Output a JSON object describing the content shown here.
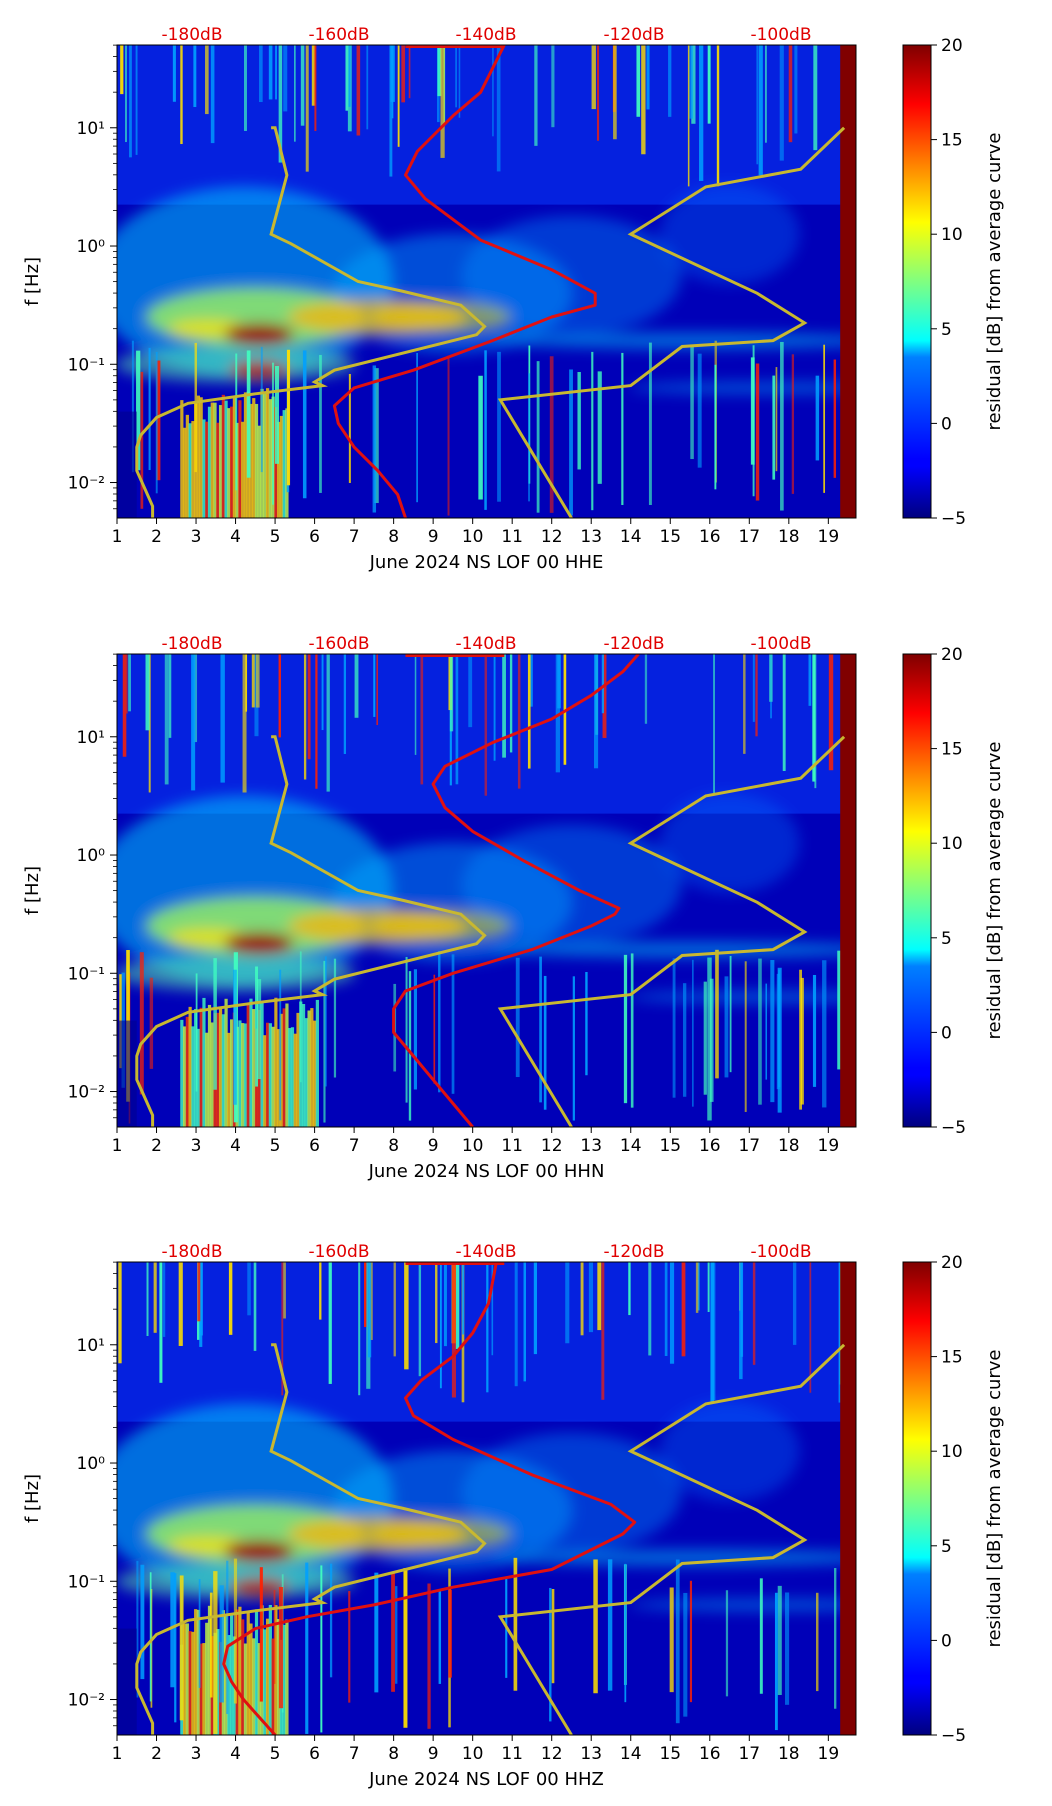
{
  "chart_data": [
    {
      "type": "heatmap",
      "xlabel": "June 2024 NS LOF 00 HHE",
      "ylabel": "f [Hz]",
      "x_ticks": [
        1,
        2,
        3,
        4,
        5,
        6,
        7,
        8,
        9,
        10,
        11,
        12,
        13,
        14,
        15,
        16,
        17,
        18,
        19
      ],
      "y_ticks": [
        "10⁻²",
        "10⁻¹",
        "10⁰",
        "10¹"
      ],
      "top_axis_labels": [
        "-180dB",
        "-160dB",
        "-140dB",
        "-120dB",
        "-100dB"
      ],
      "colorbar": {
        "label": "residual [dB] from average curve",
        "ticks": [
          -5,
          0,
          5,
          10,
          15,
          20
        ],
        "range": [
          -5,
          20
        ]
      },
      "xlim": [
        1,
        19.7
      ],
      "ylim_log10": [
        -2.3,
        1.7
      ],
      "bright_days": [
        2.6,
        5.3
      ],
      "red_curve": {
        "name": "",
        "x": [
          8.3,
          8.1,
          7.6,
          7.0,
          6.6,
          6.5,
          7.0,
          8.5,
          10.5,
          12.0,
          13.1,
          13.1,
          12.0,
          10.2,
          8.8,
          8.3,
          8.6,
          9.5,
          10.2,
          10.5,
          10.8
        ],
        "log_f": [
          -2.3,
          -2.1,
          -1.9,
          -1.7,
          -1.5,
          -1.35,
          -1.2,
          -1.05,
          -0.8,
          -0.6,
          -0.5,
          -0.4,
          -0.2,
          0.05,
          0.4,
          0.6,
          0.8,
          1.1,
          1.3,
          1.5,
          1.7
        ]
      },
      "yellow_curves": [
        {
          "x": [
            1.9,
            1.9,
            1.7,
            1.5,
            1.5,
            1.6,
            2.0,
            2.8,
            4.5,
            6.2,
            6.0,
            6.5,
            10.1,
            10.3,
            9.7,
            8.2,
            7.1,
            5.4,
            4.9,
            5.3,
            5.0,
            4.9
          ],
          "log_f": [
            -2.3,
            -2.2,
            -2.05,
            -1.9,
            -1.7,
            -1.6,
            -1.45,
            -1.33,
            -1.25,
            -1.18,
            -1.15,
            -1.05,
            -0.75,
            -0.68,
            -0.5,
            -0.38,
            -0.3,
            0.02,
            0.1,
            0.6,
            1.0,
            1.0
          ]
        },
        {
          "x": [
            12.5,
            10.7,
            14.0,
            15.3,
            17.6,
            18.4,
            17.2,
            14.0,
            15.9,
            18.3,
            19.4
          ],
          "log_f": [
            -2.3,
            -1.3,
            -1.18,
            -0.85,
            -0.8,
            -0.65,
            -0.4,
            0.1,
            0.5,
            0.65,
            1.0
          ]
        }
      ]
    },
    {
      "type": "heatmap",
      "xlabel": "June 2024 NS LOF 00 HHN",
      "ylabel": "f [Hz]",
      "x_ticks": [
        1,
        2,
        3,
        4,
        5,
        6,
        7,
        8,
        9,
        10,
        11,
        12,
        13,
        14,
        15,
        16,
        17,
        18,
        19
      ],
      "y_ticks": [
        "10⁻²",
        "10⁻¹",
        "10⁰",
        "10¹"
      ],
      "top_axis_labels": [
        "-180dB",
        "-160dB",
        "-140dB",
        "-120dB",
        "-100dB"
      ],
      "colorbar": {
        "label": "residual [dB] from average curve",
        "ticks": [
          -5,
          0,
          5,
          10,
          15,
          20
        ],
        "range": [
          -5,
          20
        ]
      },
      "xlim": [
        1,
        19.7
      ],
      "ylim_log10": [
        -2.3,
        1.7
      ],
      "bright_days": [
        2.6,
        6.1
      ],
      "red_curve": {
        "name": "",
        "x": [
          10.0,
          9.5,
          9.0,
          8.5,
          8.0,
          8.0,
          8.3,
          9.5,
          11.5,
          13.0,
          13.6,
          13.7,
          12.7,
          11.3,
          10.0,
          9.3,
          9.0,
          9.3,
          10.5,
          12.0,
          13.0,
          13.8,
          14.2
        ],
        "log_f": [
          -2.3,
          -2.1,
          -1.9,
          -1.7,
          -1.5,
          -1.3,
          -1.15,
          -1.0,
          -0.8,
          -0.6,
          -0.5,
          -0.45,
          -0.3,
          -0.05,
          0.2,
          0.4,
          0.6,
          0.75,
          0.95,
          1.15,
          1.35,
          1.55,
          1.7
        ]
      },
      "yellow_curves": [
        {
          "x": [
            1.9,
            1.9,
            1.7,
            1.5,
            1.5,
            1.6,
            2.0,
            2.8,
            4.5,
            6.2,
            6.0,
            6.5,
            10.1,
            10.3,
            9.7,
            8.2,
            7.1,
            5.4,
            4.9,
            5.3,
            5.0,
            4.9
          ],
          "log_f": [
            -2.3,
            -2.2,
            -2.05,
            -1.9,
            -1.7,
            -1.6,
            -1.45,
            -1.33,
            -1.25,
            -1.18,
            -1.15,
            -1.05,
            -0.75,
            -0.68,
            -0.5,
            -0.38,
            -0.3,
            0.02,
            0.1,
            0.6,
            1.0,
            1.0
          ]
        },
        {
          "x": [
            12.5,
            10.7,
            14.0,
            15.3,
            17.6,
            18.4,
            17.2,
            14.0,
            15.9,
            18.3,
            19.4
          ],
          "log_f": [
            -2.3,
            -1.3,
            -1.18,
            -0.85,
            -0.8,
            -0.65,
            -0.4,
            0.1,
            0.5,
            0.65,
            1.0
          ]
        }
      ]
    },
    {
      "type": "heatmap",
      "xlabel": "June 2024 NS LOF 00 HHZ",
      "ylabel": "f [Hz]",
      "x_ticks": [
        1,
        2,
        3,
        4,
        5,
        6,
        7,
        8,
        9,
        10,
        11,
        12,
        13,
        14,
        15,
        16,
        17,
        18,
        19
      ],
      "y_ticks": [
        "10⁻²",
        "10⁻¹",
        "10⁰",
        "10¹"
      ],
      "top_axis_labels": [
        "-180dB",
        "-160dB",
        "-140dB",
        "-120dB",
        "-100dB"
      ],
      "colorbar": {
        "label": "residual [dB] from average curve",
        "ticks": [
          -5,
          0,
          5,
          10,
          15,
          20
        ],
        "range": [
          -5,
          20
        ]
      },
      "xlim": [
        1,
        19.7
      ],
      "ylim_log10": [
        -2.3,
        1.7
      ],
      "bright_days": [
        2.6,
        5.3
      ],
      "red_curve": {
        "name": "",
        "x": [
          5.0,
          4.6,
          4.2,
          3.9,
          3.7,
          3.8,
          4.5,
          5.8,
          7.5,
          9.5,
          12.0,
          13.8,
          14.1,
          13.5,
          11.5,
          9.5,
          8.5,
          8.3,
          8.7,
          9.5,
          10.0,
          10.4,
          10.6
        ],
        "log_f": [
          -2.3,
          -2.15,
          -2.0,
          -1.85,
          -1.7,
          -1.55,
          -1.4,
          -1.3,
          -1.2,
          -1.05,
          -0.9,
          -0.6,
          -0.5,
          -0.35,
          -0.1,
          0.2,
          0.4,
          0.55,
          0.7,
          0.9,
          1.1,
          1.35,
          1.7
        ]
      },
      "yellow_curves": [
        {
          "x": [
            1.9,
            1.9,
            1.7,
            1.5,
            1.5,
            1.6,
            2.0,
            2.8,
            4.5,
            6.2,
            6.0,
            6.5,
            10.1,
            10.3,
            9.7,
            8.2,
            7.1,
            5.4,
            4.9,
            5.3,
            5.0,
            4.9
          ],
          "log_f": [
            -2.3,
            -2.2,
            -2.05,
            -1.9,
            -1.7,
            -1.6,
            -1.45,
            -1.33,
            -1.25,
            -1.18,
            -1.15,
            -1.05,
            -0.75,
            -0.68,
            -0.5,
            -0.38,
            -0.3,
            0.02,
            0.1,
            0.6,
            1.0,
            1.0
          ]
        },
        {
          "x": [
            12.5,
            10.7,
            14.0,
            15.3,
            17.6,
            18.4,
            17.2,
            14.0,
            15.9,
            18.3,
            19.4
          ],
          "log_f": [
            -2.3,
            -1.3,
            -1.18,
            -0.85,
            -0.8,
            -0.65,
            -0.4,
            0.1,
            0.5,
            0.65,
            1.0
          ]
        }
      ]
    }
  ]
}
